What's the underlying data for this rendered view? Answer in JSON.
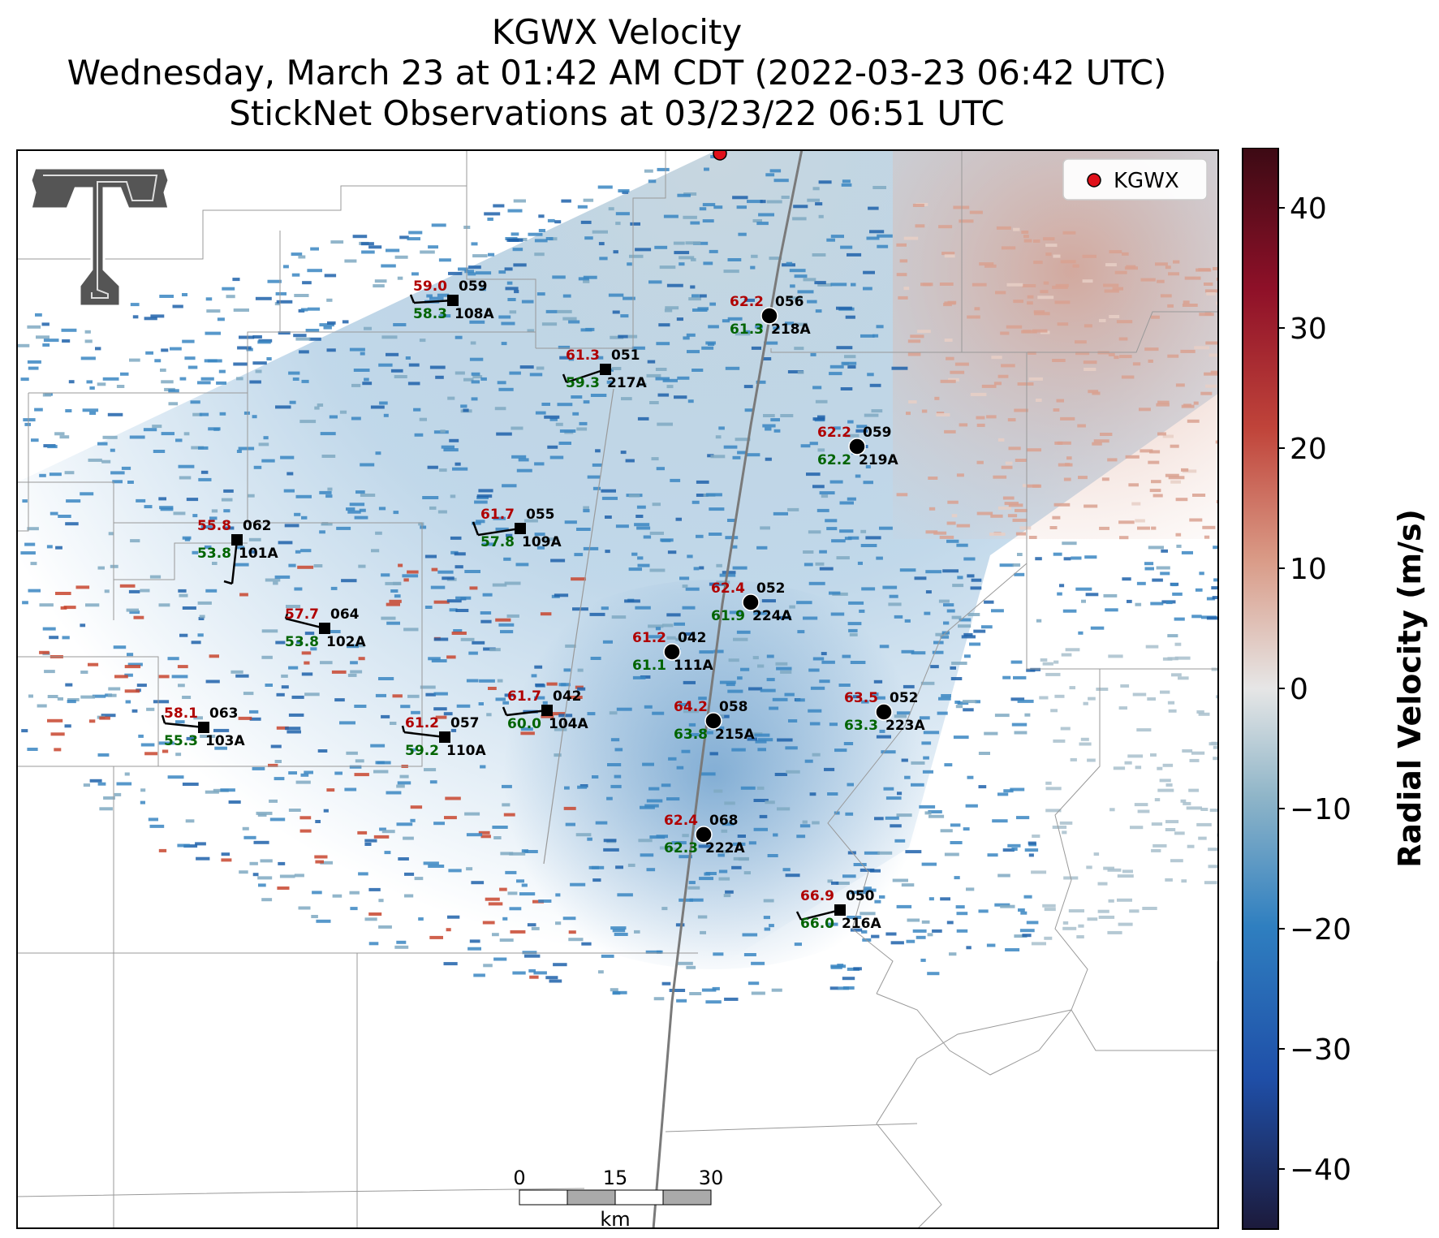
{
  "title": {
    "line1": "KGWX Velocity",
    "line2": "Wednesday, March 23 at 01:42 AM CDT (2022-03-23 06:42 UTC)",
    "line3": "StickNet Observations at 03/23/22 06:51 UTC"
  },
  "legend": {
    "label": "KGWX",
    "marker_color": "#e0101a"
  },
  "colorbar": {
    "label": "Radial Velocity (m/s)",
    "range": [
      -45,
      45
    ],
    "ticks": [
      "40",
      "30",
      "20",
      "10",
      "0",
      "−10",
      "−20",
      "−30",
      "−40"
    ],
    "colors": [
      "#1c1a3b",
      "#1f4fa8",
      "#2f7fc0",
      "#8fb5c8",
      "#e6e6e6",
      "#d99a86",
      "#c0443a",
      "#8e1028",
      "#3c0a14"
    ]
  },
  "scale_bar": {
    "labels": [
      "0",
      "15",
      "30"
    ],
    "unit": "km"
  },
  "logo": "texas-tech-double-t-logo",
  "stations": [
    {
      "id": "108A",
      "num": "059",
      "temp": "59.0",
      "dew": "58.3",
      "marker": "square"
    },
    {
      "id": "218A",
      "num": "056",
      "temp": "62.2",
      "dew": "61.3",
      "marker": "circle"
    },
    {
      "id": "217A",
      "num": "051",
      "temp": "61.3",
      "dew": "59.3",
      "marker": "square"
    },
    {
      "id": "219A",
      "num": "059",
      "temp": "62.2",
      "dew": "62.2",
      "marker": "circle"
    },
    {
      "id": "109A",
      "num": "055",
      "temp": "61.7",
      "dew": "57.8",
      "marker": "square"
    },
    {
      "id": "101A",
      "num": "062",
      "temp": "55.8",
      "dew": "53.8",
      "marker": "square"
    },
    {
      "id": "224A",
      "num": "052",
      "temp": "62.4",
      "dew": "61.9",
      "marker": "circle"
    },
    {
      "id": "102A",
      "num": "064",
      "temp": "57.7",
      "dew": "53.8",
      "marker": "square"
    },
    {
      "id": "111A",
      "num": "042",
      "temp": "61.2",
      "dew": "61.1",
      "marker": "circle"
    },
    {
      "id": "104A",
      "num": "042",
      "temp": "61.7",
      "dew": "60.0",
      "marker": "square"
    },
    {
      "id": "215A",
      "num": "058",
      "temp": "64.2",
      "dew": "63.8",
      "marker": "circle"
    },
    {
      "id": "223A",
      "num": "052",
      "temp": "63.5",
      "dew": "63.3",
      "marker": "circle"
    },
    {
      "id": "103A",
      "num": "063",
      "temp": "58.1",
      "dew": "55.3",
      "marker": "square"
    },
    {
      "id": "110A",
      "num": "057",
      "temp": "61.2",
      "dew": "59.2",
      "marker": "square"
    },
    {
      "id": "222A",
      "num": "068",
      "temp": "62.4",
      "dew": "62.3",
      "marker": "circle"
    },
    {
      "id": "216A",
      "num": "050",
      "temp": "66.9",
      "dew": "66.0",
      "marker": "square"
    }
  ]
}
